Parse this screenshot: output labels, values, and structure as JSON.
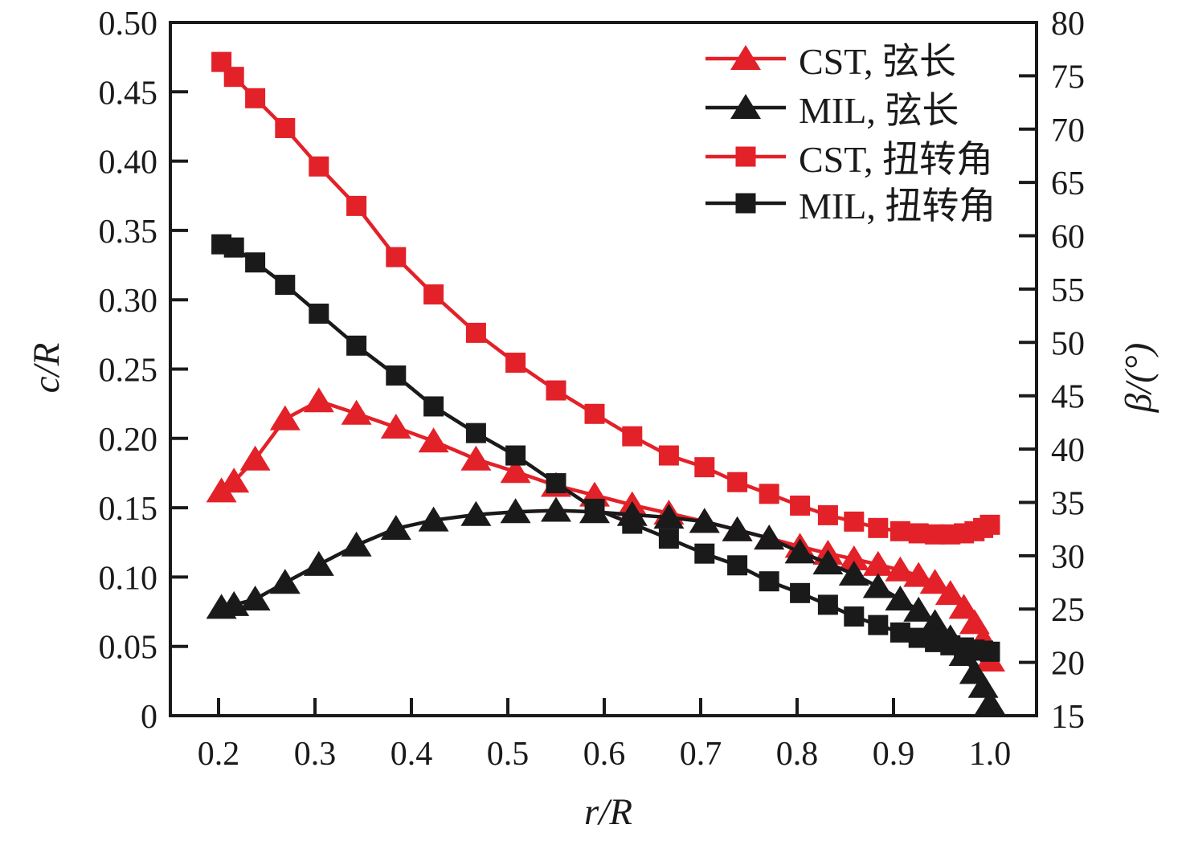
{
  "chart_data": {
    "type": "line",
    "title": "",
    "grid": false,
    "ink_color": "#1a1a1a",
    "accent_color": "#e32128",
    "legend": {
      "position": "inside-top-right"
    },
    "x_axis": {
      "label": "r/R",
      "range": [
        0.2,
        1.0
      ],
      "tick_labels": [
        "0.2",
        "0.3",
        "0.4",
        "0.5",
        "0.6",
        "0.7",
        "0.8",
        "0.9",
        "1.0"
      ]
    },
    "y_left": {
      "label": "c/R",
      "range": [
        0,
        0.5
      ],
      "tick_labels": [
        "0",
        "0.05",
        "0.10",
        "0.15",
        "0.20",
        "0.25",
        "0.30",
        "0.35",
        "0.40",
        "0.45",
        "0.50"
      ]
    },
    "y_right": {
      "label": "β/(°)",
      "range": [
        15,
        80
      ],
      "tick_labels": [
        "15",
        "20",
        "25",
        "30",
        "35",
        "40",
        "45",
        "50",
        "55",
        "60",
        "65",
        "70",
        "75",
        "80"
      ]
    },
    "x": [
      0.203,
      0.216,
      0.238,
      0.269,
      0.304,
      0.343,
      0.384,
      0.423,
      0.467,
      0.508,
      0.55,
      0.59,
      0.629,
      0.667,
      0.704,
      0.738,
      0.771,
      0.803,
      0.832,
      0.859,
      0.884,
      0.907,
      0.926,
      0.943,
      0.959,
      0.973,
      0.984,
      0.993,
      1.0
    ],
    "series": [
      {
        "name": "cst-chord",
        "label": "CST, 弦长",
        "color": "#e32128",
        "marker": "triangle-up",
        "axis": "left",
        "values": [
          0.162,
          0.169,
          0.185,
          0.214,
          0.227,
          0.218,
          0.208,
          0.198,
          0.185,
          0.176,
          0.166,
          0.159,
          0.152,
          0.146,
          0.14,
          0.134,
          0.128,
          0.122,
          0.117,
          0.113,
          0.109,
          0.105,
          0.101,
          0.096,
          0.088,
          0.078,
          0.067,
          0.055,
          0.04
        ]
      },
      {
        "name": "mil-chord",
        "label": "MIL, 弦长",
        "color": "#1a1a1a",
        "marker": "triangle-up",
        "axis": "left",
        "values": [
          0.078,
          0.08,
          0.084,
          0.096,
          0.109,
          0.123,
          0.135,
          0.141,
          0.145,
          0.147,
          0.148,
          0.147,
          0.145,
          0.143,
          0.14,
          0.134,
          0.128,
          0.118,
          0.11,
          0.102,
          0.093,
          0.084,
          0.076,
          0.067,
          0.056,
          0.044,
          0.031,
          0.021,
          0.009
        ]
      },
      {
        "name": "cst-twist",
        "label": "CST, 扭转角",
        "color": "#e32128",
        "marker": "square",
        "axis": "right",
        "values": [
          76.3,
          74.9,
          72.9,
          70.1,
          66.5,
          62.8,
          58.0,
          54.5,
          50.9,
          48.1,
          45.5,
          43.3,
          41.2,
          39.4,
          38.3,
          36.9,
          35.8,
          34.7,
          33.8,
          33.2,
          32.6,
          32.3,
          32.1,
          32.0,
          32.0,
          32.1,
          32.3,
          32.6,
          32.9
        ]
      },
      {
        "name": "mil-twist",
        "label": "MIL, 扭转角",
        "color": "#1a1a1a",
        "marker": "square",
        "axis": "right",
        "values": [
          59.2,
          58.9,
          57.5,
          55.4,
          52.7,
          49.7,
          46.9,
          44.0,
          41.5,
          39.4,
          36.8,
          34.4,
          33.0,
          31.6,
          30.2,
          29.1,
          27.6,
          26.5,
          25.4,
          24.3,
          23.5,
          22.8,
          22.3,
          21.9,
          21.6,
          21.4,
          21.2,
          21.1,
          21.0
        ]
      }
    ]
  }
}
